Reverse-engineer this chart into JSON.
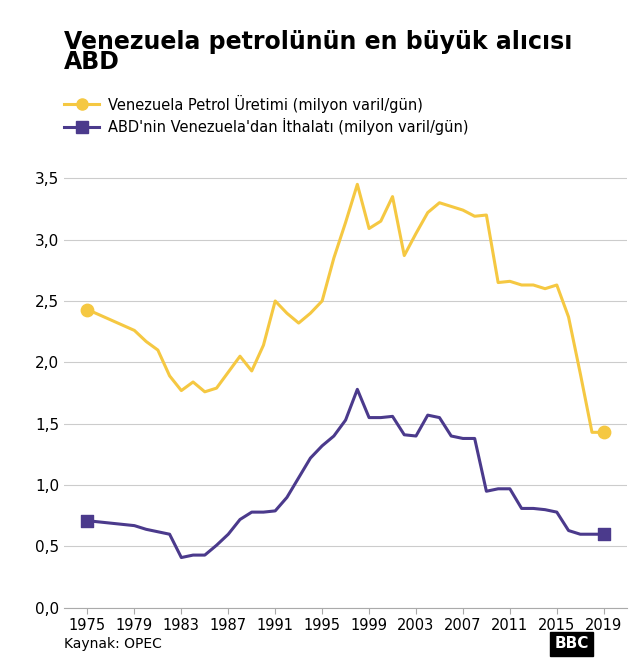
{
  "title_line1": "Venezuela petrolünün en büyük alıcısı",
  "title_line2": "ABD",
  "legend1": "Venezuela Petrol Üretimi (milyon varil/gün)",
  "legend2": "ABD'nin Venezuela'dan İthalatı (milyon varil/gün)",
  "source": "Kaynak: OPEC",
  "bbc_logo": "BBC",
  "color_venezuela": "#F5C842",
  "color_usa": "#4B3A8C",
  "years_venezuela": [
    1975,
    1979,
    1980,
    1981,
    1982,
    1983,
    1984,
    1985,
    1986,
    1987,
    1988,
    1989,
    1990,
    1991,
    1992,
    1993,
    1994,
    1995,
    1996,
    1997,
    1998,
    1999,
    2000,
    2001,
    2002,
    2003,
    2004,
    2005,
    2006,
    2007,
    2008,
    2009,
    2010,
    2011,
    2012,
    2013,
    2014,
    2015,
    2016,
    2017,
    2018,
    2019
  ],
  "values_venezuela": [
    2.43,
    2.26,
    2.17,
    2.1,
    1.89,
    1.77,
    1.84,
    1.76,
    1.79,
    1.92,
    2.05,
    1.93,
    2.14,
    2.5,
    2.4,
    2.32,
    2.4,
    2.5,
    2.85,
    3.14,
    3.45,
    3.09,
    3.15,
    3.35,
    2.87,
    3.05,
    3.22,
    3.3,
    3.27,
    3.24,
    3.19,
    3.2,
    2.65,
    2.66,
    2.63,
    2.63,
    2.6,
    2.63,
    2.37,
    1.91,
    1.43,
    1.43
  ],
  "years_usa": [
    1975,
    1979,
    1980,
    1981,
    1982,
    1983,
    1984,
    1985,
    1986,
    1987,
    1988,
    1989,
    1990,
    1991,
    1992,
    1993,
    1994,
    1995,
    1996,
    1997,
    1998,
    1999,
    2000,
    2001,
    2002,
    2003,
    2004,
    2005,
    2006,
    2007,
    2008,
    2009,
    2010,
    2011,
    2012,
    2013,
    2014,
    2015,
    2016,
    2017,
    2018,
    2019
  ],
  "values_usa": [
    0.71,
    0.67,
    0.64,
    0.62,
    0.6,
    0.41,
    0.43,
    0.43,
    0.51,
    0.6,
    0.72,
    0.78,
    0.78,
    0.79,
    0.9,
    1.06,
    1.22,
    1.32,
    1.4,
    1.53,
    1.78,
    1.55,
    1.55,
    1.56,
    1.41,
    1.4,
    1.57,
    1.55,
    1.4,
    1.38,
    1.38,
    0.95,
    0.97,
    0.97,
    0.81,
    0.81,
    0.8,
    0.78,
    0.63,
    0.6,
    0.6,
    0.6
  ],
  "ylim": [
    0,
    3.7
  ],
  "yticks": [
    0.0,
    0.5,
    1.0,
    1.5,
    2.0,
    2.5,
    3.0,
    3.5
  ],
  "ytick_labels": [
    "0,0",
    "0,5",
    "1,0",
    "1,5",
    "2,0",
    "2,5",
    "3,0",
    "3,5"
  ],
  "xticks": [
    1975,
    1979,
    1983,
    1987,
    1991,
    1995,
    1999,
    2003,
    2007,
    2011,
    2015,
    2019
  ],
  "background_color": "#ffffff",
  "grid_color": "#cccccc",
  "marker_first_venezuela_x": 1975,
  "marker_first_venezuela_y": 2.43,
  "marker_last_venezuela_x": 2019,
  "marker_last_venezuela_y": 1.43,
  "marker_first_usa_x": 1975,
  "marker_first_usa_y": 0.71,
  "marker_last_usa_x": 2019,
  "marker_last_usa_y": 0.6
}
